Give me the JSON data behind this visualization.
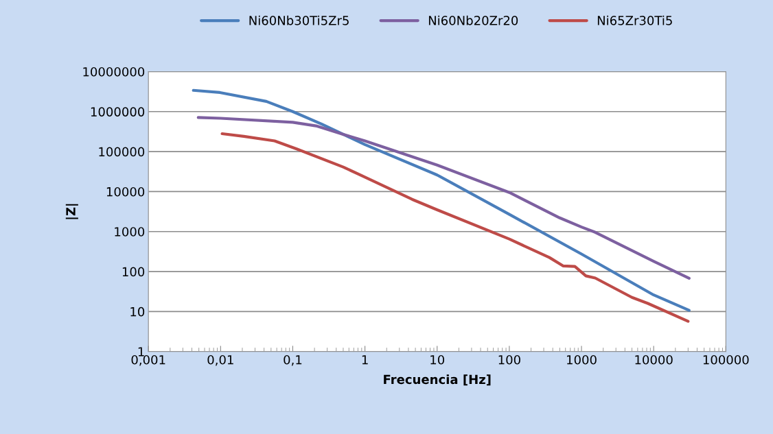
{
  "chart_data": {
    "type": "line",
    "xlabel": "Frecuencia [Hz]",
    "ylabel": "|Z|",
    "log": "xy",
    "grid": "y",
    "legend": "top",
    "marker": "none",
    "line_style": "solid",
    "xlim": [
      0.001,
      100000
    ],
    "ylim": [
      1,
      10000000
    ],
    "xticks": [
      {
        "value": 0.001,
        "label": "0,001"
      },
      {
        "value": 0.01,
        "label": "0,01"
      },
      {
        "value": 0.1,
        "label": "0,1"
      },
      1,
      10,
      100,
      1000,
      10000,
      100000
    ],
    "yticks": [
      1,
      10,
      100,
      1000,
      10000,
      100000,
      1000000,
      10000000
    ],
    "series": [
      {
        "name": "Ni60Nb30Ti5Zr5",
        "color": "#4a7ebb",
        "x": [
          0.0042,
          0.0098,
          0.043,
          0.1,
          0.25,
          0.5,
          1,
          10,
          100,
          1000,
          10000,
          31000
        ],
        "values": [
          3400000,
          3000000,
          1800000,
          1000000,
          490000,
          270000,
          150000,
          26000,
          2700,
          275,
          26,
          10.7
        ]
      },
      {
        "name": "Ni60Nb20Zr20",
        "color": "#7d60a0",
        "x": [
          0.0049,
          0.01,
          0.1,
          0.21,
          0.5,
          1,
          10,
          100,
          500,
          1000,
          1550,
          10000,
          31000
        ],
        "values": [
          710000,
          680000,
          540000,
          440000,
          270000,
          185000,
          46000,
          9500,
          2200,
          1300,
          960,
          180,
          68
        ]
      },
      {
        "name": "Ni65Zr30Ti5",
        "color": "#be4b48",
        "x": [
          0.0105,
          0.021,
          0.056,
          0.115,
          0.5,
          1,
          4.5,
          10,
          100,
          360,
          560,
          810,
          1150,
          1550,
          5000,
          8300,
          30000
        ],
        "values": [
          280000,
          240000,
          185000,
          115000,
          41000,
          23000,
          6400,
          3500,
          650,
          224,
          138,
          134,
          78,
          69,
          22.6,
          16,
          5.7
        ]
      }
    ]
  }
}
